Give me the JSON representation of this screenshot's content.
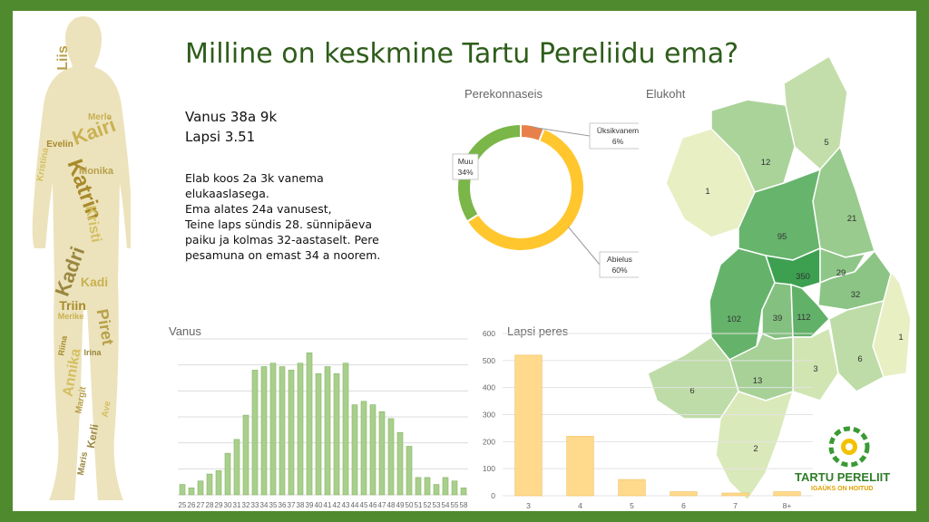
{
  "title": "Milline on keskmine Tartu Pereliidu ema?",
  "stats": {
    "age": "Vanus 38a 9k",
    "children": "Lapsi 3.51"
  },
  "description": [
    "Elab koos 2a 3k vanema",
    "elukaaslasega.",
    "Ema alates 24a vanusest,",
    "Teine laps sündis 28. sünnipäeva",
    "paiku ja kolmas 32-aastaselt. Pere",
    "pesamuna on emast 34 a noorem."
  ],
  "colors": {
    "frame": "#4f8a2e",
    "title": "#2e5d1a",
    "age_bars": "#a9cf8c",
    "children_bars": "#ffd98c",
    "donut_single": "#e8804a",
    "donut_married": "#ffc62e",
    "donut_other": "#7ab648"
  },
  "wordcloud_names": [
    "Liis",
    "Kairi",
    "Katrin",
    "Kristi",
    "Kadri",
    "Piret",
    "Kadi",
    "Triin",
    "Annika",
    "Kerli",
    "Monika",
    "Merle",
    "Evelin",
    "Kristina",
    "Maris",
    "Margit",
    "Merike",
    "Riina",
    "Ave",
    "Irina"
  ],
  "chart_data": [
    {
      "id": "perekonnaseis",
      "type": "pie",
      "title": "Perekonnaseis",
      "labels": [
        "Üksikvanem",
        "Abielus",
        "Muu"
      ],
      "values": [
        6,
        60,
        34
      ],
      "label_text": [
        "6%",
        "60%",
        "34%"
      ]
    },
    {
      "id": "vanus",
      "type": "bar",
      "title": "Vanus",
      "categories": [
        "25",
        "26",
        "27",
        "28",
        "29",
        "30",
        "31",
        "32",
        "33",
        "34",
        "35",
        "36",
        "37",
        "38",
        "39",
        "40",
        "41",
        "42",
        "43",
        "44",
        "45",
        "46",
        "47",
        "48",
        "49",
        "50",
        "51",
        "52",
        "53",
        "54",
        "55",
        "58"
      ],
      "values": [
        3,
        2,
        4,
        6,
        7,
        12,
        16,
        23,
        36,
        37,
        38,
        37,
        36,
        38,
        41,
        35,
        37,
        35,
        38,
        26,
        27,
        26,
        24,
        22,
        18,
        14,
        5,
        5,
        3,
        5,
        4,
        2
      ],
      "ylim": [
        0,
        45
      ]
    },
    {
      "id": "lapsi",
      "type": "bar",
      "title": "Lapsi peres",
      "categories": [
        "3",
        "4",
        "5",
        "6",
        "7",
        "8+"
      ],
      "values": [
        520,
        220,
        60,
        15,
        10,
        15
      ],
      "yticks": [
        "0",
        "100",
        "200",
        "300",
        "400",
        "500",
        "600"
      ],
      "ylim": [
        0,
        600
      ]
    },
    {
      "id": "elukoht",
      "type": "heatmap",
      "title": "Elukoht",
      "regions": [
        {
          "label": "1",
          "value": 1
        },
        {
          "label": "12",
          "value": 12
        },
        {
          "label": "5",
          "value": 5
        },
        {
          "label": "21",
          "value": 21
        },
        {
          "label": "95",
          "value": 95
        },
        {
          "label": "350",
          "value": 350
        },
        {
          "label": "29",
          "value": 29
        },
        {
          "label": "32",
          "value": 32
        },
        {
          "label": "102",
          "value": 102
        },
        {
          "label": "39",
          "value": 39
        },
        {
          "label": "112",
          "value": 112
        },
        {
          "label": "1",
          "value": 1
        },
        {
          "label": "3",
          "value": 3
        },
        {
          "label": "6",
          "value": 6
        },
        {
          "label": "13",
          "value": 13
        },
        {
          "label": "6",
          "value": 6
        },
        {
          "label": "2",
          "value": 2
        }
      ]
    }
  ],
  "logo": {
    "name": "TARTU PERELIIT",
    "tagline": "IGAÜKS ON HOITUD"
  }
}
